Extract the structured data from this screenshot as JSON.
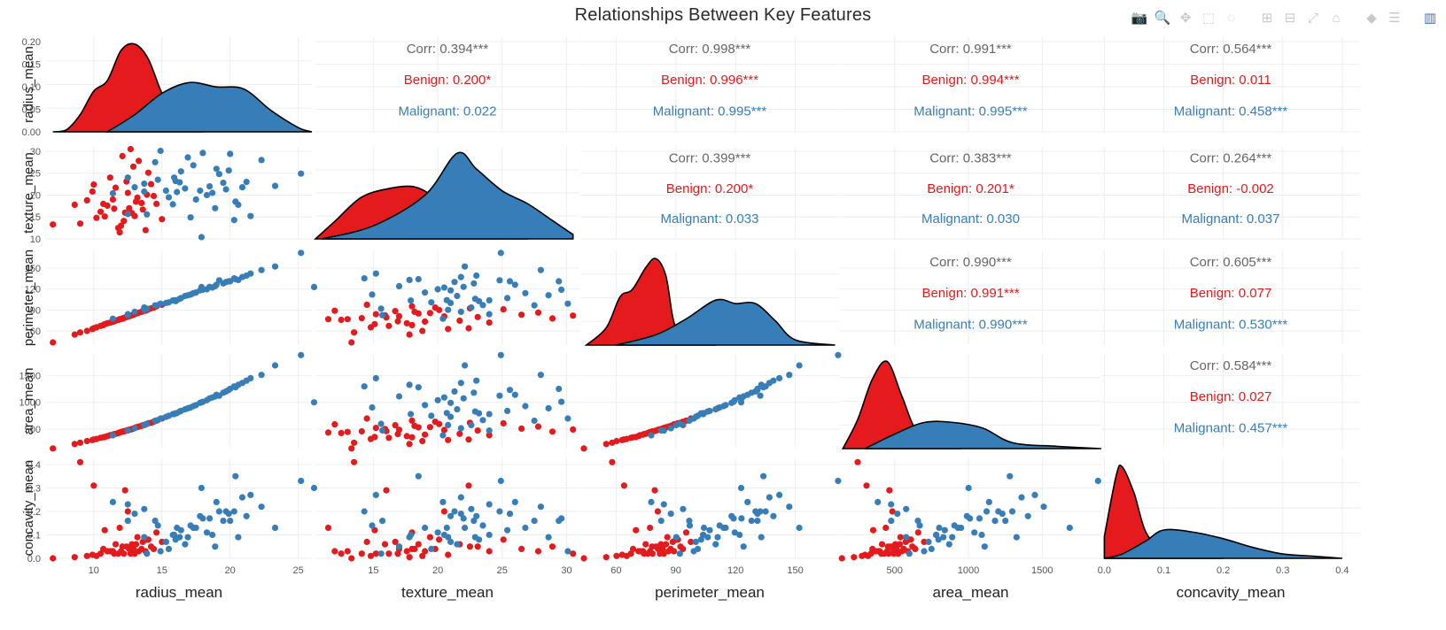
{
  "title": "Relationships Between Key Features",
  "modebar": [
    {
      "name": "camera-icon",
      "glyph": "📷"
    },
    {
      "name": "zoom-icon",
      "glyph": "🔍"
    },
    {
      "name": "pan-icon",
      "glyph": "✥"
    },
    {
      "name": "box-select-icon",
      "glyph": "⬚"
    },
    {
      "name": "lasso-select-icon",
      "glyph": "◌"
    },
    {
      "name": "zoom-in-icon",
      "glyph": "⊞"
    },
    {
      "name": "zoom-out-icon",
      "glyph": "⊟"
    },
    {
      "name": "autoscale-icon",
      "glyph": "⤢"
    },
    {
      "name": "home-icon",
      "glyph": "⌂"
    },
    {
      "name": "spike-lines-icon",
      "glyph": "◆"
    },
    {
      "name": "compare-hover-icon",
      "glyph": "☰"
    },
    {
      "name": "plotly-logo-icon",
      "glyph": "▥"
    }
  ],
  "colors": {
    "benign": "#e41a1c",
    "malignant": "#377eb8",
    "corr": "#666666",
    "grid": "#eeeeee"
  },
  "chart_data": {
    "type": "scatter",
    "variables": [
      "radius_mean",
      "texture_mean",
      "perimeter_mean",
      "area_mean",
      "concavity_mean"
    ],
    "x_ticks": [
      [
        10,
        15,
        20,
        25
      ],
      [
        10,
        15,
        20,
        25,
        30
      ],
      [
        60,
        90,
        120,
        150
      ],
      [
        500,
        1000,
        1500
      ],
      [
        0,
        0.1,
        0.2,
        0.3,
        0.4
      ]
    ],
    "x_tick_labels": [
      [
        "10",
        "15",
        "20",
        "25"
      ],
      [
        "10",
        "15",
        "20",
        "25",
        "30"
      ],
      [
        "60",
        "90",
        "120",
        "150"
      ],
      [
        "500",
        "1000",
        "1500"
      ],
      [
        "0.0",
        "0.1",
        "0.2",
        "0.3",
        "0.4"
      ]
    ],
    "y_ticks": [
      [
        0,
        0.05,
        0.1,
        0.15,
        0.2
      ],
      [
        10,
        15,
        20,
        25,
        30
      ],
      [
        60,
        90,
        120,
        150
      ],
      [
        500,
        1000,
        1500
      ],
      [
        0,
        0.1,
        0.2,
        0.3,
        0.4
      ]
    ],
    "y_tick_labels": [
      [
        "0.00",
        "0.05",
        "0.10",
        "0.15",
        "0.20"
      ],
      [
        "10",
        "15",
        "20",
        "25",
        "30"
      ],
      [
        "60",
        "90",
        "120",
        "150"
      ],
      [
        "500",
        "1000",
        "1500"
      ],
      [
        "0.0",
        "0.1",
        "0.2",
        "0.3",
        "0.4"
      ]
    ],
    "correlations": [
      {
        "row": 0,
        "col": 1,
        "corr": "Corr: 0.394***",
        "benign": "Benign: 0.200*",
        "malignant": "Malignant: 0.022"
      },
      {
        "row": 0,
        "col": 2,
        "corr": "Corr: 0.998***",
        "benign": "Benign: 0.996***",
        "malignant": "Malignant: 0.995***"
      },
      {
        "row": 0,
        "col": 3,
        "corr": "Corr: 0.991***",
        "benign": "Benign: 0.994***",
        "malignant": "Malignant: 0.995***"
      },
      {
        "row": 0,
        "col": 4,
        "corr": "Corr: 0.564***",
        "benign": "Benign: 0.011",
        "malignant": "Malignant: 0.458***"
      },
      {
        "row": 1,
        "col": 2,
        "corr": "Corr: 0.399***",
        "benign": "Benign: 0.200*",
        "malignant": "Malignant: 0.033"
      },
      {
        "row": 1,
        "col": 3,
        "corr": "Corr: 0.383***",
        "benign": "Benign: 0.201*",
        "malignant": "Malignant: 0.030"
      },
      {
        "row": 1,
        "col": 4,
        "corr": "Corr: 0.264***",
        "benign": "Benign: -0.002",
        "malignant": "Malignant: 0.037"
      },
      {
        "row": 2,
        "col": 3,
        "corr": "Corr: 0.990***",
        "benign": "Benign: 0.991***",
        "malignant": "Malignant: 0.990***"
      },
      {
        "row": 2,
        "col": 4,
        "corr": "Corr: 0.605***",
        "benign": "Benign: 0.077",
        "malignant": "Malignant: 0.530***"
      },
      {
        "row": 3,
        "col": 4,
        "corr": "Corr: 0.584***",
        "benign": "Benign: 0.027",
        "malignant": "Malignant: 0.457***"
      }
    ],
    "density": {
      "radius_mean": {
        "benign": [
          [
            7,
            0
          ],
          [
            8,
            0.005
          ],
          [
            9,
            0.04
          ],
          [
            10,
            0.095
          ],
          [
            11,
            0.12
          ],
          [
            12,
            0.19
          ],
          [
            13,
            0.205
          ],
          [
            14,
            0.17
          ],
          [
            15,
            0.09
          ],
          [
            16,
            0.04
          ],
          [
            17,
            0.01
          ],
          [
            18,
            0
          ]
        ],
        "malignant": [
          [
            11,
            0
          ],
          [
            13,
            0.04
          ],
          [
            15,
            0.09
          ],
          [
            17,
            0.115
          ],
          [
            19,
            0.105
          ],
          [
            21,
            0.1
          ],
          [
            23,
            0.05
          ],
          [
            25,
            0.01
          ],
          [
            27,
            0
          ]
        ]
      },
      "texture_mean": {
        "benign": [
          [
            10,
            0
          ],
          [
            12,
            0.2
          ],
          [
            14,
            0.47
          ],
          [
            16,
            0.57
          ],
          [
            18,
            0.6
          ],
          [
            19.5,
            0.5
          ],
          [
            21,
            0.3
          ],
          [
            23,
            0.12
          ],
          [
            25,
            0.04
          ],
          [
            27,
            0
          ]
        ],
        "malignant": [
          [
            11,
            0
          ],
          [
            15,
            0.15
          ],
          [
            19,
            0.5
          ],
          [
            21.5,
            0.98
          ],
          [
            23,
            0.8
          ],
          [
            25,
            0.55
          ],
          [
            27,
            0.4
          ],
          [
            29,
            0.2
          ],
          [
            30.5,
            0.05
          ]
        ]
      },
      "perimeter_mean": {
        "benign": [
          [
            45,
            0
          ],
          [
            55,
            0.01
          ],
          [
            62,
            0.028
          ],
          [
            68,
            0.032
          ],
          [
            75,
            0.045
          ],
          [
            80,
            0.05
          ],
          [
            85,
            0.04
          ],
          [
            90,
            0.01
          ],
          [
            100,
            0.002
          ],
          [
            110,
            0
          ]
        ],
        "malignant": [
          [
            60,
            0
          ],
          [
            80,
            0.006
          ],
          [
            95,
            0.015
          ],
          [
            110,
            0.026
          ],
          [
            120,
            0.024
          ],
          [
            130,
            0.024
          ],
          [
            140,
            0.014
          ],
          [
            150,
            0.003
          ],
          [
            170,
            0
          ]
        ]
      },
      "area_mean": {
        "benign": [
          [
            150,
            0
          ],
          [
            250,
            0.001
          ],
          [
            350,
            0.0024
          ],
          [
            450,
            0.003
          ],
          [
            550,
            0.0018
          ],
          [
            650,
            0.0006
          ],
          [
            800,
            0.0001
          ],
          [
            950,
            0
          ]
        ],
        "malignant": [
          [
            300,
            0
          ],
          [
            500,
            0.0005
          ],
          [
            700,
            0.0009
          ],
          [
            900,
            0.0009
          ],
          [
            1100,
            0.0007
          ],
          [
            1300,
            0.0002
          ],
          [
            1600,
            8e-05
          ],
          [
            1900,
            0
          ]
        ]
      },
      "concavity_mean": {
        "benign": [
          [
            0,
            10
          ],
          [
            0.02,
            38
          ],
          [
            0.03,
            42
          ],
          [
            0.05,
            30
          ],
          [
            0.07,
            12
          ],
          [
            0.1,
            4
          ],
          [
            0.15,
            1
          ],
          [
            0.2,
            0
          ]
        ],
        "malignant": [
          [
            0,
            0
          ],
          [
            0.03,
            2
          ],
          [
            0.07,
            8
          ],
          [
            0.1,
            13
          ],
          [
            0.15,
            12
          ],
          [
            0.2,
            9
          ],
          [
            0.25,
            5
          ],
          [
            0.3,
            2
          ],
          [
            0.35,
            1
          ],
          [
            0.4,
            0
          ]
        ]
      }
    },
    "points": {
      "benign": [
        [
          12.2,
          14.1,
          78.3,
          460,
          0.02
        ],
        [
          13.5,
          18.2,
          87.4,
          562,
          0.04
        ],
        [
          11.0,
          17.6,
          71.2,
          372,
          0.03
        ],
        [
          12.8,
          15.9,
          82.5,
          505,
          0.06
        ],
        [
          9.5,
          18.8,
          60.2,
          279,
          0.01
        ],
        [
          13.9,
          20.1,
          90.1,
          598,
          0.08
        ],
        [
          12.0,
          13.0,
          77.0,
          450,
          0.03
        ],
        [
          10.5,
          16.2,
          67.4,
          340,
          0.02
        ],
        [
          14.2,
          22.5,
          92.3,
          620,
          0.05
        ],
        [
          11.8,
          12.5,
          75.9,
          430,
          0.02
        ],
        [
          13.2,
          19.4,
          85.7,
          540,
          0.09
        ],
        [
          12.6,
          17.0,
          81.1,
          490,
          0.04
        ],
        [
          10.8,
          15.1,
          69.9,
          355,
          0.12
        ],
        [
          9.9,
          20.8,
          63.0,
          300,
          0.015
        ],
        [
          13.6,
          16.7,
          88.5,
          575,
          0.07
        ],
        [
          11.4,
          19.0,
          73.5,
          400,
          0.03
        ],
        [
          12.4,
          23.1,
          80.0,
          475,
          0.05
        ],
        [
          14.6,
          18.0,
          95.2,
          660,
          0.11
        ],
        [
          10.2,
          14.8,
          65.3,
          320,
          0.01
        ],
        [
          11.6,
          21.7,
          74.8,
          415,
          0.06
        ],
        [
          13.0,
          15.2,
          84.0,
          525,
          0.02
        ],
        [
          12.9,
          26.5,
          83.3,
          512,
          0.04
        ],
        [
          8.6,
          17.8,
          55.0,
          225,
          0.005
        ],
        [
          11.2,
          24.0,
          72.0,
          390,
          0.03
        ],
        [
          15.0,
          14.5,
          97.5,
          700,
          0.07
        ],
        [
          12.1,
          28.9,
          78.0,
          455,
          0.05
        ],
        [
          13.8,
          12.0,
          89.0,
          590,
          0.03
        ],
        [
          10.0,
          22.4,
          64.0,
          310,
          0.31
        ],
        [
          12.7,
          30.5,
          82.0,
          495,
          0.02
        ],
        [
          14.0,
          25.1,
          91.0,
          610,
          0.08
        ],
        [
          9.0,
          13.5,
          58.0,
          250,
          0.41
        ],
        [
          11.9,
          11.5,
          77.0,
          440,
          0.13
        ],
        [
          13.3,
          27.8,
          86.3,
          550,
          0.03
        ],
        [
          12.3,
          16.0,
          79.4,
          465,
          0.29
        ],
        [
          7.0,
          13.3,
          43.8,
          143,
          0.0
        ],
        [
          13.1,
          18.5,
          85.0,
          535,
          0.06
        ],
        [
          12.5,
          20.5,
          80.9,
          485,
          0.2
        ],
        [
          11.5,
          16.9,
          74.0,
          410,
          0.02
        ],
        [
          14.4,
          19.8,
          93.5,
          640,
          0.04
        ],
        [
          10.7,
          18.0,
          68.5,
          350,
          0.04
        ]
      ],
      "malignant": [
        [
          17.9,
          10.4,
          122.8,
          1001,
          0.3
        ],
        [
          20.6,
          17.8,
          132.9,
          1326,
          0.09
        ],
        [
          19.7,
          21.3,
          130.0,
          1203,
          0.2
        ],
        [
          11.4,
          20.4,
          77.6,
          386,
          0.24
        ],
        [
          20.3,
          14.3,
          135.1,
          1297,
          0.2
        ],
        [
          12.5,
          15.7,
          82.6,
          477,
          0.16
        ],
        [
          18.3,
          20.0,
          119.6,
          1040,
          0.11
        ],
        [
          13.7,
          20.8,
          90.2,
          578,
          0.09
        ],
        [
          13.0,
          21.8,
          87.5,
          519,
          0.19
        ],
        [
          12.5,
          24.0,
          84.0,
          476,
          0.23
        ],
        [
          16.0,
          23.2,
          102.7,
          797,
          0.08
        ],
        [
          15.8,
          17.9,
          103.6,
          781,
          0.1
        ],
        [
          19.2,
          24.8,
          132.4,
          1123,
          0.2
        ],
        [
          15.9,
          24.0,
          103.8,
          782,
          0.1
        ],
        [
          13.7,
          22.6,
          93.6,
          578,
          0.21
        ],
        [
          14.5,
          27.5,
          96.7,
          658,
          0.16
        ],
        [
          16.1,
          20.7,
          104.1,
          802,
          0.13
        ],
        [
          17.1,
          14.9,
          112.0,
          905,
          0.14
        ],
        [
          21.2,
          23.0,
          139.0,
          1403,
          0.18
        ],
        [
          16.7,
          21.5,
          110.0,
          870,
          0.06
        ],
        [
          18.5,
          22.0,
          123.0,
          1075,
          0.17
        ],
        [
          17.5,
          19.0,
          115.0,
          950,
          0.13
        ],
        [
          19.0,
          26.0,
          126.0,
          1140,
          0.24
        ],
        [
          15.3,
          21.0,
          100.0,
          730,
          0.07
        ],
        [
          22.3,
          28.0,
          147.0,
          1510,
          0.22
        ],
        [
          20.0,
          29.4,
          131.0,
          1250,
          0.16
        ],
        [
          16.4,
          25.4,
          107.0,
          840,
          0.12
        ],
        [
          18.9,
          17.0,
          124.0,
          1110,
          0.05
        ],
        [
          14.7,
          23.5,
          97.0,
          670,
          0.14
        ],
        [
          17.8,
          21.0,
          118.0,
          990,
          0.18
        ],
        [
          20.9,
          21.8,
          137.0,
          1360,
          0.26
        ],
        [
          25.2,
          24.9,
          171.5,
          1878,
          0.33
        ],
        [
          23.3,
          22.1,
          152.0,
          1686,
          0.13
        ],
        [
          19.5,
          22.8,
          128.0,
          1180,
          0.16
        ],
        [
          16.9,
          28.6,
          111.0,
          890,
          0.09
        ],
        [
          18.0,
          29.6,
          119.0,
          1010,
          0.17
        ],
        [
          15.5,
          19.5,
          101.0,
          750,
          0.04
        ],
        [
          21.5,
          15.2,
          142.0,
          1450,
          0.27
        ],
        [
          17.3,
          26.8,
          114.0,
          930,
          0.13
        ],
        [
          19.9,
          25.6,
          131.0,
          1230,
          0.19
        ],
        [
          13.9,
          15.6,
          92.0,
          600,
          0.02
        ],
        [
          16.3,
          22.9,
          106.0,
          830,
          0.09
        ],
        [
          20.4,
          18.5,
          134.0,
          1280,
          0.35
        ],
        [
          18.7,
          20.5,
          122.0,
          1090,
          0.1
        ],
        [
          14.9,
          30.1,
          99.0,
          700,
          0.03
        ]
      ]
    }
  }
}
